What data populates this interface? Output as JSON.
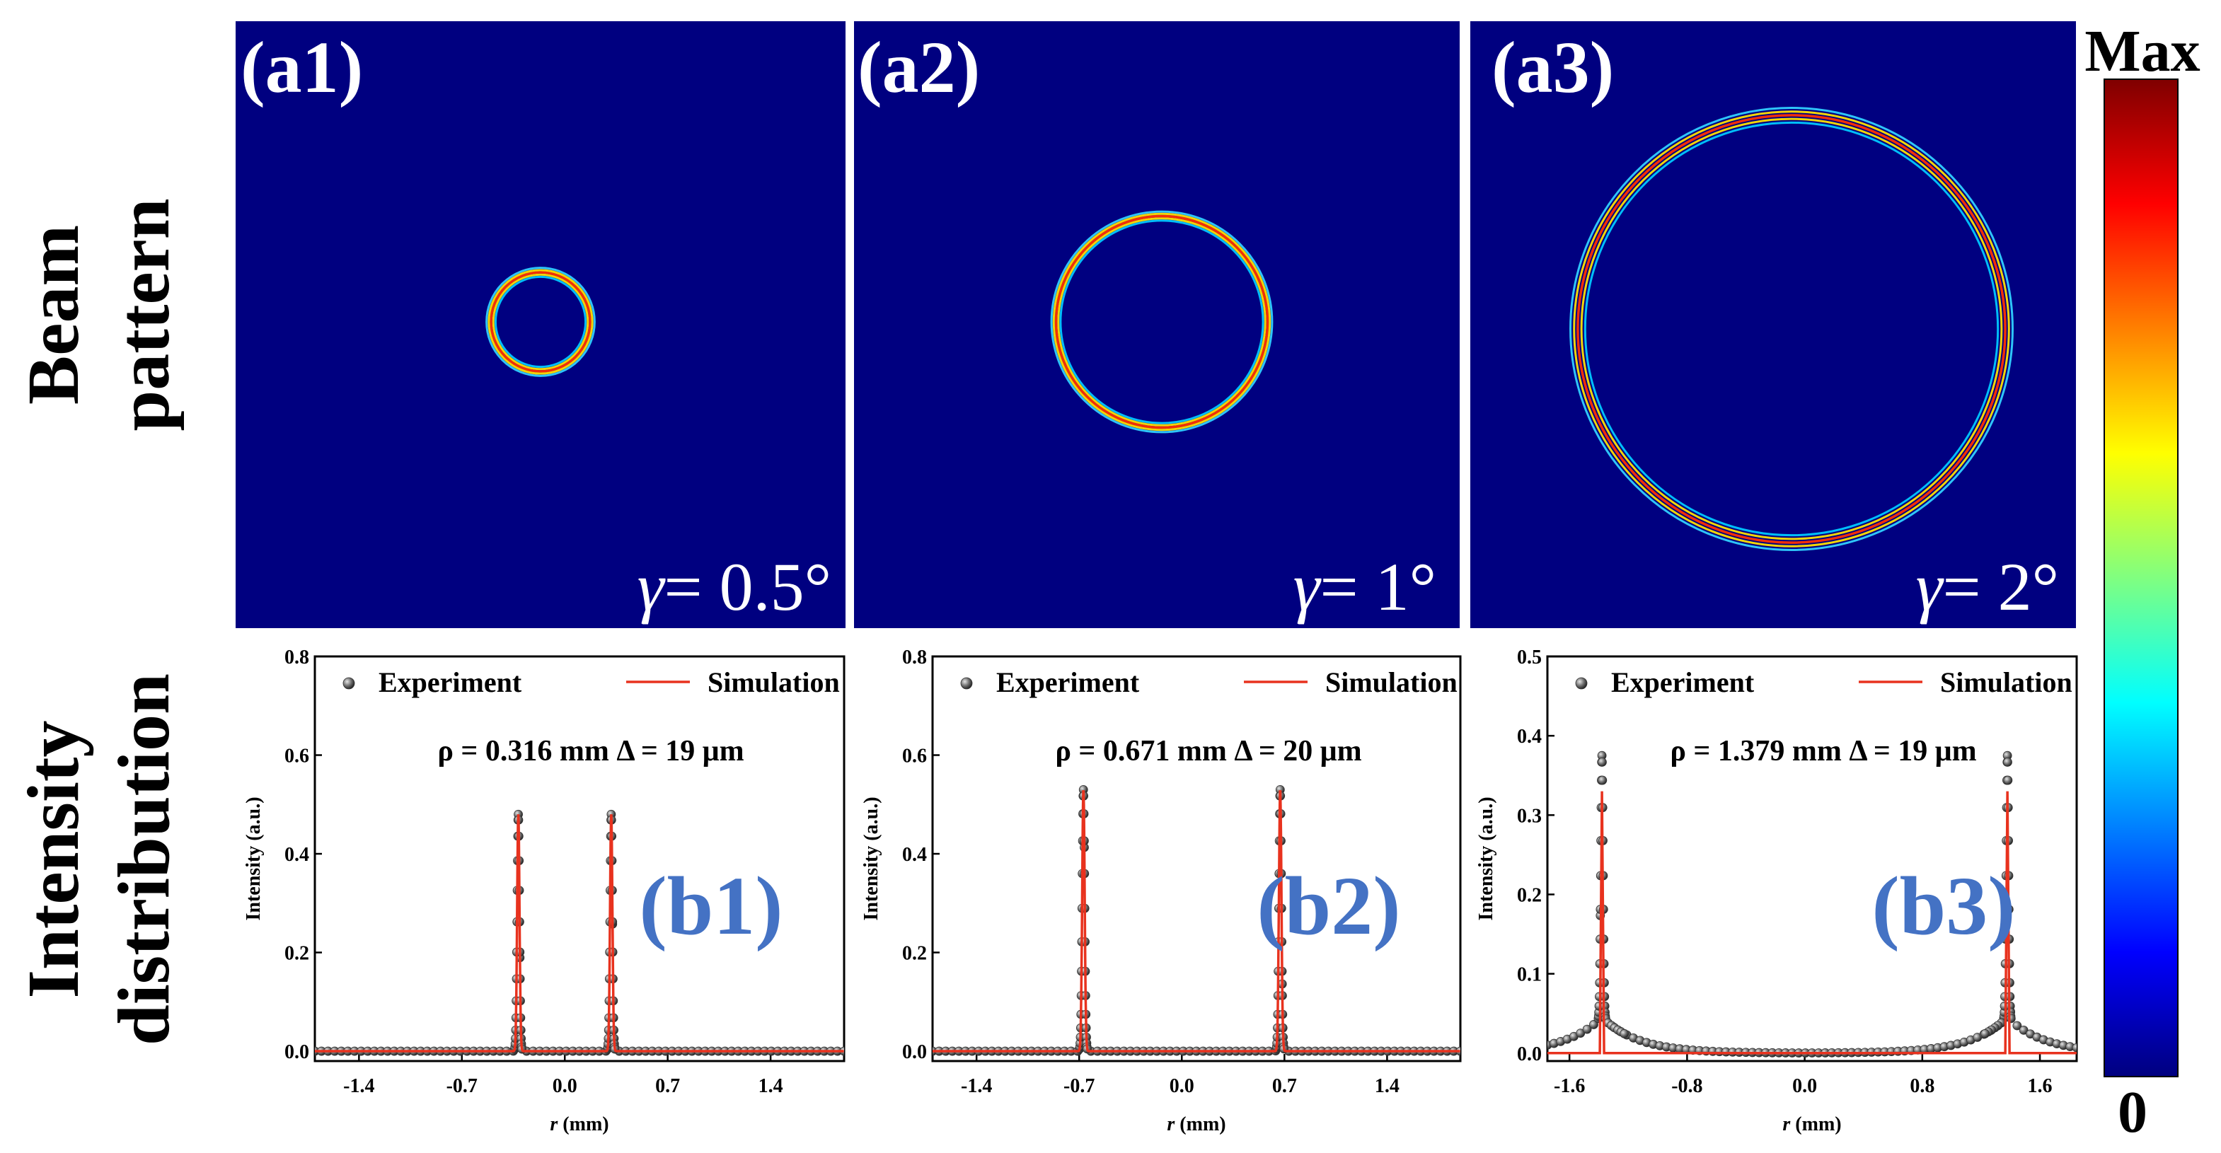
{
  "row_labels": {
    "top": [
      "Beam",
      "pattern"
    ],
    "bottom": [
      "Intensity",
      "distribution"
    ]
  },
  "colorbar": {
    "max_label": "Max",
    "min_label": "0",
    "stops": [
      "#00007f",
      "#0000ff",
      "#0080ff",
      "#00ffff",
      "#80ff80",
      "#ffff00",
      "#ff8000",
      "#ff0000",
      "#7f0000"
    ]
  },
  "colors": {
    "background": "#000080",
    "simulation": "#e8321e",
    "experiment": "#555555",
    "panel_letter": "#4472c4"
  },
  "beam_panels": [
    {
      "label": "(a1)",
      "gamma_prefix": "γ",
      "gamma_value": "= 0.5°",
      "ring_radius_mm": 0.316
    },
    {
      "label": "(a2)",
      "gamma_prefix": "γ",
      "gamma_value": "= 1°",
      "ring_radius_mm": 0.671
    },
    {
      "label": "(a3)",
      "gamma_prefix": "γ",
      "gamma_value": "= 2°",
      "ring_radius_mm": 1.379
    }
  ],
  "chart_data": [
    {
      "type": "line",
      "label": "(b1)",
      "xlabel_var": "r",
      "xlabel_unit": " (mm)",
      "ylabel": "Intensity (a.u.)",
      "xlim": [
        -1.7,
        1.9
      ],
      "ylim": [
        -0.02,
        0.8
      ],
      "xticks": [
        -1.4,
        -0.7,
        0.0,
        0.7,
        1.4
      ],
      "xtick_labels": [
        "-1.4",
        "-0.7",
        "0.0",
        "0.7",
        "1.4"
      ],
      "yticks": [
        0.0,
        0.2,
        0.4,
        0.6,
        0.8
      ],
      "ytick_labels": [
        "0.0",
        "0.2",
        "0.4",
        "0.6",
        "0.8"
      ],
      "legend": [
        "Experiment",
        "Simulation"
      ],
      "annotation": "ρ = 0.316 mm  Δ = 19 μm",
      "peaks": [
        -0.316,
        0.316
      ],
      "peak_height": 0.48,
      "peak_width_mm": 0.019,
      "baseline": 0.0
    },
    {
      "type": "line",
      "label": "(b2)",
      "xlabel_var": "r",
      "xlabel_unit": " (mm)",
      "ylabel": "Intensity (a.u.)",
      "xlim": [
        -1.7,
        1.9
      ],
      "ylim": [
        -0.02,
        0.8
      ],
      "xticks": [
        -1.4,
        -0.7,
        0.0,
        0.7,
        1.4
      ],
      "xtick_labels": [
        "-1.4",
        "-0.7",
        "0.0",
        "0.7",
        "1.4"
      ],
      "yticks": [
        0.0,
        0.2,
        0.4,
        0.6,
        0.8
      ],
      "ytick_labels": [
        "0.0",
        "0.2",
        "0.4",
        "0.6",
        "0.8"
      ],
      "legend": [
        "Experiment",
        "Simulation"
      ],
      "annotation": "ρ = 0.671 mm  Δ = 20 μm",
      "peaks": [
        -0.671,
        0.671
      ],
      "peak_height": 0.53,
      "peak_width_mm": 0.02,
      "baseline": 0.0
    },
    {
      "type": "line",
      "label": "(b3)",
      "xlabel_var": "r",
      "xlabel_unit": " (mm)",
      "ylabel": "Intensity (a.u.)",
      "xlim": [
        -1.75,
        1.85
      ],
      "ylim": [
        -0.01,
        0.5
      ],
      "xticks": [
        -1.6,
        -0.8,
        0.0,
        0.8,
        1.6
      ],
      "xtick_labels": [
        "-1.6",
        "-0.8",
        "0.0",
        "0.8",
        "1.6"
      ],
      "yticks": [
        0.0,
        0.1,
        0.2,
        0.3,
        0.4,
        0.5
      ],
      "ytick_labels": [
        "0.0",
        "0.1",
        "0.2",
        "0.3",
        "0.4",
        "0.5"
      ],
      "legend": [
        "Experiment",
        "Simulation"
      ],
      "annotation": "ρ = 1.379 mm  Δ = 19 μm",
      "peaks": [
        -1.379,
        1.379
      ],
      "peak_height": 0.33,
      "peak_width_mm": 0.019,
      "baseline": 0.0,
      "flat_simulation": true
    }
  ]
}
